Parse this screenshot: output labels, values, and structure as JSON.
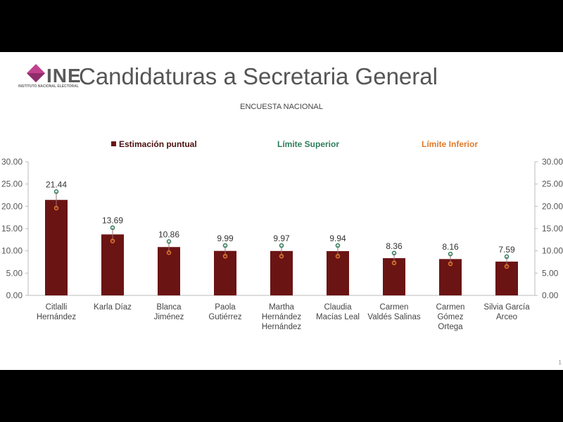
{
  "header": {
    "logo_text": "INE",
    "logo_subtext": "INSTITUTO NACIONAL ELECTORAL",
    "title": "Candidaturas a Secretaria General",
    "subtitle": "ENCUESTA NACIONAL",
    "page_number": "1"
  },
  "colors": {
    "bar": "#6b1414",
    "upper": "#2e7d5b",
    "lower": "#e07a2a",
    "logo_pink": "#c2418f"
  },
  "chart_data": {
    "type": "bar",
    "categories": [
      [
        "Citlalli",
        "Hernández"
      ],
      [
        "Karla Díaz"
      ],
      [
        "Blanca",
        "Jiménez"
      ],
      [
        "Paola",
        "Gutiérrez"
      ],
      [
        "Martha",
        "Hernández",
        "Hernández"
      ],
      [
        "Claudia",
        "Macías Leal"
      ],
      [
        "Carmen",
        "Valdés Salinas"
      ],
      [
        "Carmen",
        "Gómez",
        "Ortega"
      ],
      [
        "Silvia García",
        "Arceo"
      ]
    ],
    "series": [
      {
        "name": "Estimación puntual",
        "values": [
          21.44,
          13.69,
          10.86,
          9.99,
          9.97,
          9.94,
          8.36,
          8.16,
          7.59
        ]
      },
      {
        "name": "Límite Superior",
        "values": [
          23.3,
          15.2,
          12.1,
          11.2,
          11.2,
          11.2,
          9.5,
          9.3,
          8.7
        ]
      },
      {
        "name": "Límite Inferior",
        "values": [
          19.6,
          12.2,
          9.6,
          8.8,
          8.8,
          8.8,
          7.3,
          7.1,
          6.5
        ]
      }
    ],
    "value_labels": [
      "21.44",
      "13.69",
      "10.86",
      "9.99",
      "9.97",
      "9.94",
      "8.36",
      "8.16",
      "7.59"
    ],
    "yticks": [
      "0.00",
      "5.00",
      "10.00",
      "15.00",
      "20.00",
      "25.00",
      "30.00"
    ],
    "ylim": [
      0,
      30
    ],
    "legend_position": "top"
  }
}
